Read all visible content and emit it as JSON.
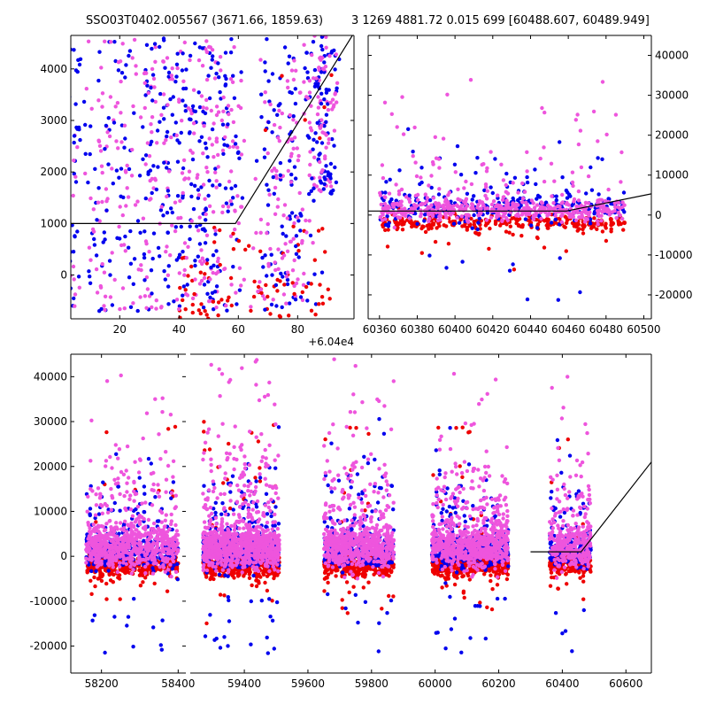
{
  "title_left": "SSO03T0402.005567 (3671.66, 1859.63)",
  "title_right": "3 1269 4881.72 0.015 699 [60488.607, 60489.949]",
  "colors": {
    "blue": "#0000ee",
    "red": "#ee0000",
    "magenta": "#ee55dd",
    "line": "#000000"
  },
  "chart_data": [
    {
      "id": "top-left-zoom",
      "type": "scatter",
      "x_offset_label": "+6.04e4",
      "xlim": [
        3.5,
        99
      ],
      "ylim": [
        -850,
        4650
      ],
      "xticks": [
        20,
        40,
        60,
        80
      ],
      "yticks": [
        0,
        1000,
        2000,
        3000,
        4000
      ],
      "series": [
        {
          "color": "blue",
          "x_range": [
            3.5,
            92
          ],
          "y_range": [
            -500,
            4600
          ]
        },
        {
          "color": "magenta",
          "x_range": [
            3.5,
            92
          ],
          "y_range": [
            -600,
            4600
          ]
        },
        {
          "color": "red",
          "x_range": [
            40,
            92
          ],
          "y_range": [
            -850,
            1200
          ]
        }
      ],
      "model_line": [
        [
          3.5,
          1000
        ],
        [
          59,
          1000
        ],
        [
          99,
          4700
        ]
      ]
    },
    {
      "id": "top-right-season",
      "type": "scatter",
      "xlim": [
        60354,
        60504
      ],
      "ylim": [
        -26000,
        45000
      ],
      "xticks": [
        60360,
        60380,
        60400,
        60420,
        60440,
        60460,
        60480,
        60500
      ],
      "yticks": [
        -20000,
        -10000,
        0,
        10000,
        20000,
        30000,
        40000
      ],
      "series": [
        {
          "color": "blue",
          "x_range": [
            60360,
            60490
          ],
          "y_range": [
            -23000,
            42000
          ]
        },
        {
          "color": "red",
          "x_range": [
            60360,
            60490
          ],
          "y_range": [
            -8000,
            39000
          ]
        },
        {
          "color": "magenta",
          "x_range": [
            60360,
            60490
          ],
          "y_range": [
            -10000,
            38000
          ]
        }
      ],
      "model_line": [
        [
          60354,
          1000
        ],
        [
          60459,
          1000
        ],
        [
          60504,
          5300
        ]
      ]
    },
    {
      "id": "bottom-full",
      "type": "scatter",
      "ylim": [
        -26000,
        45000
      ],
      "yticks": [
        -20000,
        -10000,
        0,
        10000,
        20000,
        30000,
        40000
      ],
      "panels": [
        {
          "xlim": [
            58120,
            58420
          ],
          "xticks": [
            58200,
            58400
          ]
        },
        {
          "xlim": [
            59230,
            60680
          ],
          "xticks": [
            59400,
            59600,
            59800,
            60000,
            60200,
            60400,
            60600
          ]
        }
      ],
      "seasons": [
        {
          "x_range": [
            58160,
            58400
          ]
        },
        {
          "x_range": [
            59270,
            59510
          ]
        },
        {
          "x_range": [
            59650,
            59870
          ]
        },
        {
          "x_range": [
            59990,
            60230
          ]
        },
        {
          "x_range": [
            60360,
            60490
          ]
        }
      ],
      "model_line": [
        [
          60300,
          1000
        ],
        [
          60459,
          1000
        ],
        [
          60680,
          21000
        ]
      ]
    }
  ]
}
